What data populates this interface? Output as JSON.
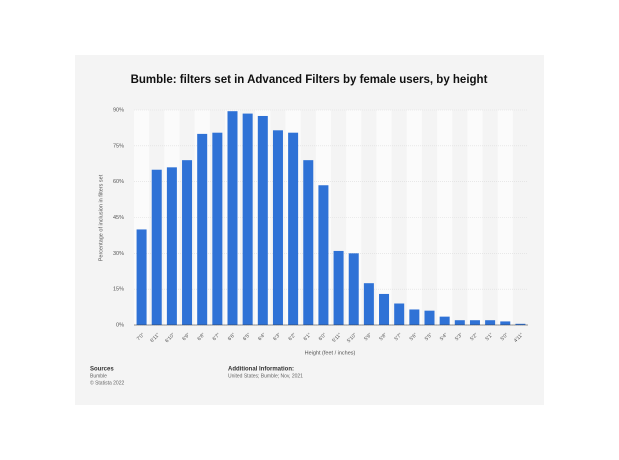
{
  "chart_data": {
    "type": "bar",
    "title": "Bumble: filters set in Advanced Filters by female users, by height",
    "x_label": "Height (feet / inches)",
    "y_label": "Percentage of inclusion in filters set",
    "categories": [
      "7'0\"",
      "6'11\"",
      "6'10\"",
      "6'9\"",
      "6'8\"",
      "6'7\"",
      "6'6\"",
      "6'5\"",
      "6'4\"",
      "6'3\"",
      "6'2\"",
      "6'1\"",
      "6'0\"",
      "5'11\"",
      "5'10\"",
      "5'9\"",
      "5'8\"",
      "5'7\"",
      "5'6\"",
      "5'5\"",
      "5'4\"",
      "5'3\"",
      "5'2\"",
      "5'1\"",
      "5'0\"",
      "4'11\""
    ],
    "values": [
      40,
      65,
      66,
      69,
      80,
      80.5,
      89.5,
      88.5,
      87.5,
      81.5,
      80.5,
      69,
      58.5,
      31,
      30,
      17.5,
      13,
      9,
      6.5,
      6,
      3.5,
      2,
      2,
      2,
      1.5,
      0.5
    ],
    "color": "#2f72d6",
    "ylim": [
      0,
      90
    ],
    "yticks": [
      {
        "value": 0,
        "label": "0%"
      },
      {
        "value": 15,
        "label": "15%"
      },
      {
        "value": 30,
        "label": "30%"
      },
      {
        "value": 45,
        "label": "45%"
      },
      {
        "value": 60,
        "label": "60%"
      },
      {
        "value": 75,
        "label": "75%"
      },
      {
        "value": 90,
        "label": "90%"
      }
    ],
    "grid": true
  },
  "footer": {
    "sources_title": "Sources",
    "sources": [
      "Bumble",
      "© Statista 2022"
    ],
    "info_title": "Additional Information:",
    "info": "United States; Bumble; Nov, 2021"
  }
}
